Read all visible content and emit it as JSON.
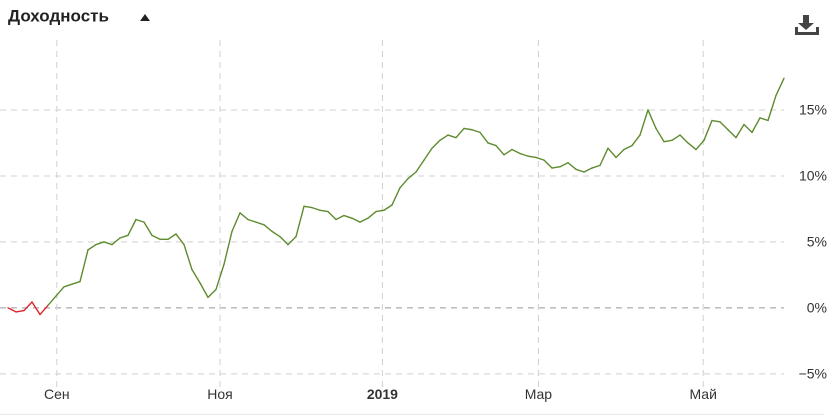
{
  "chart_data": {
    "type": "line",
    "title": "Доходность",
    "values": [
      0,
      -0.3,
      -0.2,
      0.45,
      -0.5,
      0.2,
      0.9,
      1.6,
      1.8,
      2.0,
      4.4,
      4.8,
      5.0,
      4.8,
      5.3,
      5.5,
      6.7,
      6.5,
      5.5,
      5.2,
      5.2,
      5.6,
      4.8,
      2.9,
      1.9,
      0.8,
      1.4,
      3.3,
      5.8,
      7.2,
      6.7,
      6.5,
      6.3,
      5.8,
      5.4,
      4.8,
      5.4,
      7.7,
      7.6,
      7.4,
      7.3,
      6.7,
      7.0,
      6.8,
      6.5,
      6.8,
      7.3,
      7.4,
      7.8,
      9.1,
      9.8,
      10.3,
      11.2,
      12.1,
      12.7,
      13.1,
      12.9,
      13.6,
      13.5,
      13.3,
      12.5,
      12.3,
      11.6,
      12.0,
      11.7,
      11.5,
      11.4,
      11.2,
      10.6,
      10.7,
      11.0,
      10.5,
      10.3,
      10.6,
      10.8,
      12.1,
      11.4,
      12.0,
      12.3,
      13.1,
      15.0,
      13.6,
      12.6,
      12.7,
      13.1,
      12.5,
      12.0,
      12.7,
      14.2,
      14.1,
      13.5,
      12.9,
      13.9,
      13.3,
      14.4,
      14.2,
      16.1,
      17.4
    ],
    "color": "#5e8b2e",
    "negative_color": "#e0232b",
    "xlim": [
      -1,
      97
    ],
    "xticks": [
      {
        "value": 6.1,
        "label": "Сен"
      },
      {
        "value": 26.5,
        "label": "Ноя"
      },
      {
        "value": 46.8,
        "label": "2019"
      },
      {
        "value": 66.3,
        "label": "Мар"
      },
      {
        "value": 86.9,
        "label": "Май"
      }
    ],
    "ylim": [
      -6.4,
      20.3
    ],
    "yticks": [
      {
        "value": -5,
        "label": "−5%"
      },
      {
        "value": 0,
        "label": "0%"
      },
      {
        "value": 5,
        "label": "5%"
      },
      {
        "value": 10,
        "label": "10%"
      },
      {
        "value": 15,
        "label": "15%"
      }
    ],
    "grid": true
  }
}
